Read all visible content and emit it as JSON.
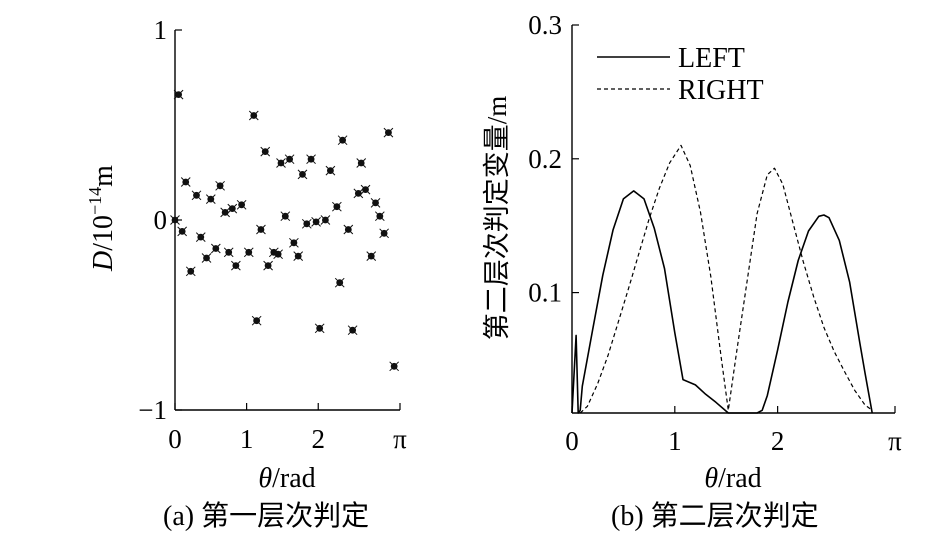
{
  "chart_data": [
    {
      "type": "scatter",
      "caption": "(a) 第一层次判定",
      "ylabel_main": "D",
      "ylabel_rest": "/10",
      "ylabel_exp": "−14",
      "ylabel_unit": "m",
      "xlabel_main": "θ",
      "xlabel_rest": "/rad",
      "xlim": [
        0,
        3.1416
      ],
      "ylim": [
        -1,
        1
      ],
      "xticks": [
        {
          "value": 0,
          "label": "0"
        },
        {
          "value": 1,
          "label": "1"
        },
        {
          "value": 2,
          "label": "2"
        },
        {
          "value": 3.1416,
          "label": "π"
        }
      ],
      "yticks": [
        {
          "value": -1,
          "label": "−1"
        },
        {
          "value": 0,
          "label": "0"
        },
        {
          "value": 1,
          "label": "1"
        }
      ],
      "x": [
        0.0,
        0.05,
        0.1,
        0.15,
        0.22,
        0.3,
        0.36,
        0.44,
        0.5,
        0.57,
        0.63,
        0.7,
        0.75,
        0.8,
        0.85,
        0.93,
        1.03,
        1.1,
        1.14,
        1.2,
        1.26,
        1.3,
        1.38,
        1.44,
        1.48,
        1.54,
        1.6,
        1.66,
        1.72,
        1.78,
        1.84,
        1.9,
        1.97,
        2.02,
        2.1,
        2.17,
        2.26,
        2.3,
        2.34,
        2.42,
        2.48,
        2.56,
        2.6,
        2.66,
        2.74,
        2.8,
        2.86,
        2.92,
        2.98,
        3.06
      ],
      "y": [
        0.0,
        0.66,
        -0.06,
        0.2,
        -0.27,
        0.13,
        -0.09,
        -0.2,
        0.11,
        -0.15,
        0.18,
        0.04,
        -0.17,
        0.06,
        -0.24,
        0.08,
        -0.17,
        0.55,
        -0.53,
        -0.05,
        0.36,
        -0.24,
        -0.17,
        -0.18,
        0.3,
        0.02,
        0.32,
        -0.12,
        -0.19,
        0.24,
        -0.02,
        0.32,
        -0.01,
        -0.57,
        0.0,
        0.26,
        0.07,
        -0.33,
        0.42,
        -0.05,
        -0.58,
        0.14,
        0.3,
        0.16,
        -0.19,
        0.09,
        0.02,
        -0.07,
        0.46,
        -0.77
      ]
    },
    {
      "type": "line",
      "caption": "(b) 第二层次判定",
      "ylabel": "第二层次判定变量/m",
      "xlabel_main": "θ",
      "xlabel_rest": "/rad",
      "xlim": [
        0,
        3.1416
      ],
      "ylim": [
        0.01,
        0.3
      ],
      "xticks": [
        {
          "value": 0,
          "label": "0"
        },
        {
          "value": 1,
          "label": "1"
        },
        {
          "value": 2,
          "label": "2"
        },
        {
          "value": 3.1416,
          "label": "π"
        }
      ],
      "yticks": [
        {
          "value": 0.1,
          "label": "0.1"
        },
        {
          "value": 0.2,
          "label": "0.2"
        },
        {
          "value": 0.3,
          "label": "0.3"
        }
      ],
      "legend_position": "top-left",
      "series": [
        {
          "name": "LEFT",
          "style": "solid",
          "x": [
            0.0,
            0.04,
            0.06,
            0.08,
            0.1,
            0.2,
            0.3,
            0.4,
            0.5,
            0.6,
            0.7,
            0.8,
            0.9,
            1.0,
            1.08,
            1.2,
            1.3,
            1.4,
            1.52,
            1.6,
            1.7,
            1.8,
            1.85,
            1.9,
            2.0,
            2.1,
            2.2,
            2.3,
            2.4,
            2.45,
            2.5,
            2.6,
            2.7,
            2.8,
            2.85,
            2.92
          ],
          "y": [
            0.01,
            0.068,
            0.01,
            0.012,
            0.03,
            0.072,
            0.113,
            0.147,
            0.17,
            0.176,
            0.17,
            0.148,
            0.118,
            0.07,
            0.035,
            0.031,
            0.024,
            0.018,
            0.01,
            0.01,
            0.01,
            0.01,
            0.012,
            0.023,
            0.057,
            0.093,
            0.124,
            0.146,
            0.157,
            0.158,
            0.156,
            0.139,
            0.108,
            0.062,
            0.04,
            0.01
          ]
        },
        {
          "name": "RIGHT",
          "style": "dashed",
          "x": [
            0.08,
            0.15,
            0.25,
            0.35,
            0.45,
            0.55,
            0.65,
            0.75,
            0.85,
            0.95,
            1.06,
            1.15,
            1.25,
            1.35,
            1.45,
            1.52,
            1.6,
            1.7,
            1.8,
            1.9,
            1.97,
            2.05,
            2.15,
            2.25,
            2.35,
            2.45,
            2.55,
            2.65,
            2.75,
            2.85,
            2.92
          ],
          "y": [
            0.01,
            0.015,
            0.032,
            0.053,
            0.078,
            0.103,
            0.129,
            0.155,
            0.178,
            0.197,
            0.21,
            0.195,
            0.16,
            0.112,
            0.052,
            0.012,
            0.055,
            0.107,
            0.159,
            0.188,
            0.193,
            0.181,
            0.152,
            0.123,
            0.097,
            0.074,
            0.056,
            0.041,
            0.027,
            0.016,
            0.012
          ]
        }
      ]
    }
  ]
}
